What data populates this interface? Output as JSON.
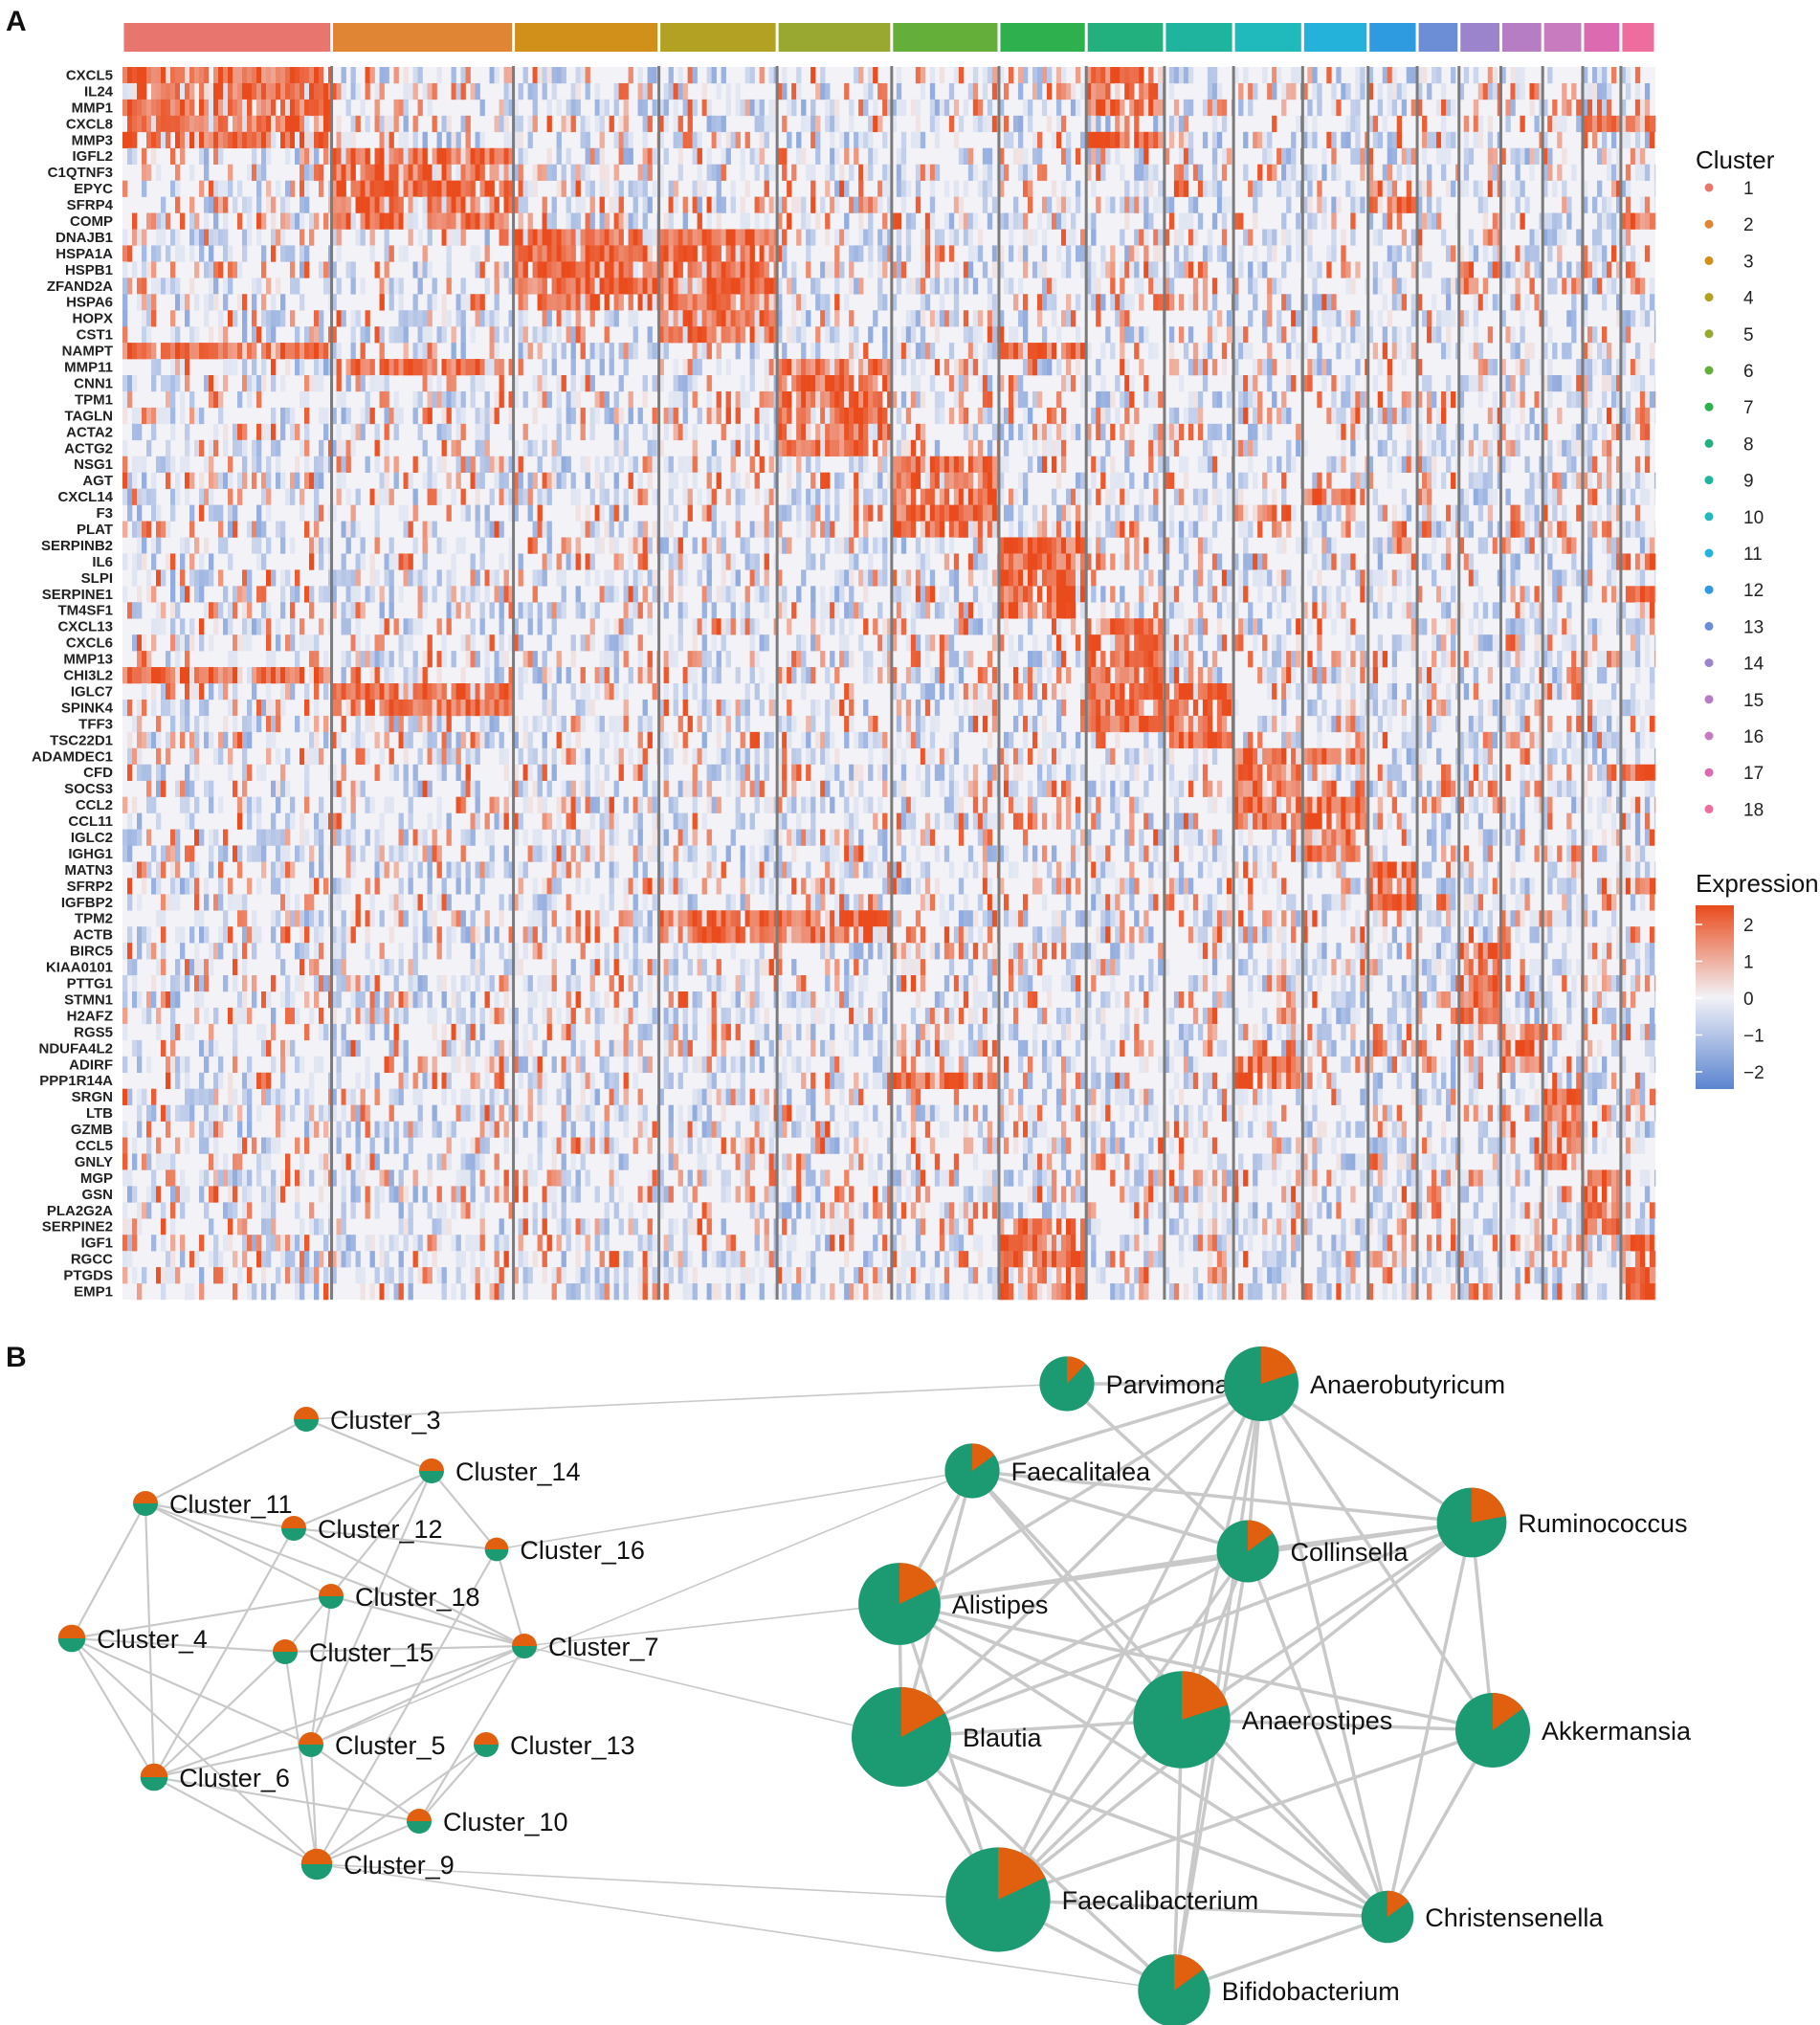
{
  "panel_a": {
    "letter": "A"
  },
  "panel_b": {
    "letter": "B"
  },
  "legend": {
    "cluster_title": "Cluster",
    "expression_title": "Expression",
    "expression_ticks": [
      "2",
      "1",
      "0",
      "−1",
      "−2"
    ],
    "low_color": "#5b84d0",
    "mid_color": "#f2f2f7",
    "high_color": "#ea4b1c"
  },
  "chart_data": [
    {
      "type": "heatmap",
      "title": "",
      "xlabel": "",
      "ylabel": "",
      "value_range": [
        -2,
        2
      ],
      "clusters": [
        {
          "id": "1",
          "color": "#E8766E",
          "weight": 11.5
        },
        {
          "id": "2",
          "color": "#E08533",
          "weight": 10.0
        },
        {
          "id": "3",
          "color": "#D0901A",
          "weight": 8.0
        },
        {
          "id": "4",
          "color": "#B3A124",
          "weight": 6.5
        },
        {
          "id": "5",
          "color": "#99A830",
          "weight": 6.3
        },
        {
          "id": "6",
          "color": "#63AF3A",
          "weight": 5.9
        },
        {
          "id": "7",
          "color": "#2FB04F",
          "weight": 4.8
        },
        {
          "id": "8",
          "color": "#22B07E",
          "weight": 4.3
        },
        {
          "id": "9",
          "color": "#1EB49E",
          "weight": 3.8
        },
        {
          "id": "10",
          "color": "#20BABD",
          "weight": 3.8
        },
        {
          "id": "11",
          "color": "#25B2DA",
          "weight": 3.6
        },
        {
          "id": "12",
          "color": "#2E9BE0",
          "weight": 2.7
        },
        {
          "id": "13",
          "color": "#6C8ED6",
          "weight": 2.3
        },
        {
          "id": "14",
          "color": "#9B84CC",
          "weight": 2.3
        },
        {
          "id": "15",
          "color": "#B77DC4",
          "weight": 2.3
        },
        {
          "id": "16",
          "color": "#C97BBF",
          "weight": 2.2
        },
        {
          "id": "17",
          "color": "#DB6AB0",
          "weight": 2.1
        },
        {
          "id": "18",
          "color": "#EE6C9E",
          "weight": 1.9
        }
      ],
      "genes": [
        {
          "name": "CXCL5",
          "hi": [
            1,
            8
          ]
        },
        {
          "name": "IL24",
          "hi": [
            1,
            8
          ]
        },
        {
          "name": "MMP1",
          "hi": [
            1,
            8
          ]
        },
        {
          "name": "CXCL8",
          "hi": [
            1,
            17,
            18
          ]
        },
        {
          "name": "MMP3",
          "hi": [
            1,
            8
          ]
        },
        {
          "name": "IGFL2",
          "hi": [
            2
          ]
        },
        {
          "name": "C1QTNF3",
          "hi": [
            2
          ]
        },
        {
          "name": "EPYC",
          "hi": [
            2
          ]
        },
        {
          "name": "SFRP4",
          "hi": [
            2,
            12
          ]
        },
        {
          "name": "COMP",
          "hi": [
            2,
            18
          ]
        },
        {
          "name": "DNAJB1",
          "hi": [
            3,
            4
          ]
        },
        {
          "name": "HSPA1A",
          "hi": [
            3,
            4
          ]
        },
        {
          "name": "HSPB1",
          "hi": [
            3,
            4
          ]
        },
        {
          "name": "ZFAND2A",
          "hi": [
            3,
            4
          ]
        },
        {
          "name": "HSPA6",
          "hi": [
            3,
            4
          ]
        },
        {
          "name": "HOPX",
          "hi": [
            4
          ]
        },
        {
          "name": "CST1",
          "hi": [
            4
          ]
        },
        {
          "name": "NAMPT",
          "hi": [
            1,
            7
          ]
        },
        {
          "name": "MMP11",
          "hi": [
            2,
            5
          ]
        },
        {
          "name": "CNN1",
          "hi": [
            5
          ]
        },
        {
          "name": "TPM1",
          "hi": [
            5
          ]
        },
        {
          "name": "TAGLN",
          "hi": [
            5
          ]
        },
        {
          "name": "ACTA2",
          "hi": [
            5
          ]
        },
        {
          "name": "ACTG2",
          "hi": [
            5
          ]
        },
        {
          "name": "NSG1",
          "hi": [
            6
          ]
        },
        {
          "name": "AGT",
          "hi": [
            6
          ]
        },
        {
          "name": "CXCL14",
          "hi": [
            6,
            11
          ]
        },
        {
          "name": "F3",
          "hi": [
            6,
            10
          ]
        },
        {
          "name": "PLAT",
          "hi": [
            6
          ]
        },
        {
          "name": "SERPINB2",
          "hi": [
            7
          ]
        },
        {
          "name": "IL6",
          "hi": [
            7,
            18
          ]
        },
        {
          "name": "SLPI",
          "hi": [
            7
          ]
        },
        {
          "name": "SERPINE1",
          "hi": [
            7,
            18
          ]
        },
        {
          "name": "TM4SF1",
          "hi": [
            7
          ]
        },
        {
          "name": "CXCL13",
          "hi": [
            8
          ]
        },
        {
          "name": "CXCL6",
          "hi": [
            8
          ]
        },
        {
          "name": "MMP13",
          "hi": [
            8
          ]
        },
        {
          "name": "CHI3L2",
          "hi": [
            1,
            8
          ]
        },
        {
          "name": "IGLC7",
          "hi": [
            2,
            8,
            9
          ]
        },
        {
          "name": "SPINK4",
          "hi": [
            2,
            8,
            9
          ]
        },
        {
          "name": "TFF3",
          "hi": [
            8,
            9
          ]
        },
        {
          "name": "TSC22D1",
          "hi": [
            9
          ]
        },
        {
          "name": "ADAMDEC1",
          "hi": [
            10,
            11
          ]
        },
        {
          "name": "CFD",
          "hi": [
            10,
            18
          ]
        },
        {
          "name": "SOCS3",
          "hi": [
            10
          ]
        },
        {
          "name": "CCL2",
          "hi": [
            10,
            11
          ]
        },
        {
          "name": "CCL11",
          "hi": [
            10,
            11
          ]
        },
        {
          "name": "IGLC2",
          "hi": [
            11
          ]
        },
        {
          "name": "IGHG1",
          "hi": [
            11
          ]
        },
        {
          "name": "MATN3",
          "hi": [
            12
          ]
        },
        {
          "name": "SFRP2",
          "hi": [
            12,
            18
          ]
        },
        {
          "name": "IGFBP2",
          "hi": [
            12
          ]
        },
        {
          "name": "TPM2",
          "hi": [
            4,
            5
          ]
        },
        {
          "name": "ACTB",
          "hi": [
            4,
            5
          ]
        },
        {
          "name": "BIRC5",
          "hi": [
            14
          ]
        },
        {
          "name": "KIAA0101",
          "hi": [
            14
          ]
        },
        {
          "name": "PTTG1",
          "hi": [
            14
          ]
        },
        {
          "name": "STMN1",
          "hi": [
            14
          ]
        },
        {
          "name": "H2AFZ",
          "hi": [
            14
          ]
        },
        {
          "name": "RGS5",
          "hi": [
            15
          ]
        },
        {
          "name": "NDUFA4L2",
          "hi": [
            15
          ]
        },
        {
          "name": "ADIRF",
          "hi": [
            10,
            15
          ]
        },
        {
          "name": "PPP1R14A",
          "hi": [
            6,
            10
          ]
        },
        {
          "name": "SRGN",
          "hi": [
            16
          ]
        },
        {
          "name": "LTB",
          "hi": [
            16
          ]
        },
        {
          "name": "GZMB",
          "hi": [
            16
          ]
        },
        {
          "name": "CCL5",
          "hi": [
            16
          ]
        },
        {
          "name": "GNLY",
          "hi": [
            16
          ]
        },
        {
          "name": "MGP",
          "hi": [
            17
          ]
        },
        {
          "name": "GSN",
          "hi": [
            17
          ]
        },
        {
          "name": "PLA2G2A",
          "hi": [
            17
          ]
        },
        {
          "name": "SERPINE2",
          "hi": [
            7,
            17
          ]
        },
        {
          "name": "IGF1",
          "hi": [
            7,
            18
          ]
        },
        {
          "name": "RGCC",
          "hi": [
            7,
            18
          ]
        },
        {
          "name": "PTGDS",
          "hi": [
            7,
            18
          ]
        },
        {
          "name": "EMP1",
          "hi": [
            7,
            18
          ]
        }
      ]
    },
    {
      "type": "network",
      "title": "",
      "pie_colors": {
        "share_a": "#E0600F",
        "share_b": "#1C9A72"
      },
      "nodes": [
        {
          "id": "Cluster_3",
          "size": 1,
          "share": 0.5
        },
        {
          "id": "Cluster_14",
          "size": 1,
          "share": 0.5
        },
        {
          "id": "Cluster_11",
          "size": 1,
          "share": 0.5
        },
        {
          "id": "Cluster_12",
          "size": 1,
          "share": 0.5
        },
        {
          "id": "Cluster_16",
          "size": 0.95,
          "share": 0.5
        },
        {
          "id": "Cluster_18",
          "size": 1,
          "share": 0.5
        },
        {
          "id": "Cluster_4",
          "size": 1.1,
          "share": 0.5
        },
        {
          "id": "Cluster_15",
          "size": 1,
          "share": 0.5
        },
        {
          "id": "Cluster_7",
          "size": 1,
          "share": 0.5
        },
        {
          "id": "Cluster_5",
          "size": 1,
          "share": 0.5
        },
        {
          "id": "Cluster_13",
          "size": 1,
          "share": 0.5
        },
        {
          "id": "Cluster_6",
          "size": 1.1,
          "share": 0.5
        },
        {
          "id": "Cluster_10",
          "size": 1,
          "share": 0.5
        },
        {
          "id": "Cluster_9",
          "size": 1.25,
          "share": 0.5
        },
        {
          "id": "Parvimonas",
          "size": 2.2,
          "share": 0.12
        },
        {
          "id": "Anaerobutyricum",
          "size": 3.0,
          "share": 0.2
        },
        {
          "id": "Faecalitalea",
          "size": 2.2,
          "share": 0.15
        },
        {
          "id": "Ruminococcus",
          "size": 2.8,
          "share": 0.22
        },
        {
          "id": "Collinsella",
          "size": 2.5,
          "share": 0.15
        },
        {
          "id": "Alistipes",
          "size": 3.3,
          "share": 0.18
        },
        {
          "id": "Blautia",
          "size": 4.0,
          "share": 0.17
        },
        {
          "id": "Anaerostipes",
          "size": 3.9,
          "share": 0.2
        },
        {
          "id": "Akkermansia",
          "size": 3.0,
          "share": 0.15
        },
        {
          "id": "Faecalibacterium",
          "size": 4.2,
          "share": 0.18
        },
        {
          "id": "Christensenella",
          "size": 2.1,
          "share": 0.15
        },
        {
          "id": "Bifidobacterium",
          "size": 2.9,
          "share": 0.15
        }
      ],
      "edges": [
        [
          "Cluster_3",
          "Cluster_11"
        ],
        [
          "Cluster_3",
          "Cluster_14"
        ],
        [
          "Cluster_14",
          "Cluster_16"
        ],
        [
          "Cluster_14",
          "Cluster_12"
        ],
        [
          "Cluster_14",
          "Cluster_15"
        ],
        [
          "Cluster_14",
          "Cluster_5"
        ],
        [
          "Cluster_11",
          "Cluster_12"
        ],
        [
          "Cluster_11",
          "Cluster_4"
        ],
        [
          "Cluster_11",
          "Cluster_18"
        ],
        [
          "Cluster_11",
          "Cluster_6"
        ],
        [
          "Cluster_11",
          "Cluster_7"
        ],
        [
          "Cluster_12",
          "Cluster_7"
        ],
        [
          "Cluster_12",
          "Cluster_6"
        ],
        [
          "Cluster_12",
          "Cluster_16"
        ],
        [
          "Cluster_16",
          "Cluster_7"
        ],
        [
          "Cluster_16",
          "Cluster_9"
        ],
        [
          "Cluster_18",
          "Cluster_4"
        ],
        [
          "Cluster_18",
          "Cluster_7"
        ],
        [
          "Cluster_18",
          "Cluster_5"
        ],
        [
          "Cluster_4",
          "Cluster_15"
        ],
        [
          "Cluster_4",
          "Cluster_6"
        ],
        [
          "Cluster_4",
          "Cluster_5"
        ],
        [
          "Cluster_4",
          "Cluster_9"
        ],
        [
          "Cluster_15",
          "Cluster_7"
        ],
        [
          "Cluster_15",
          "Cluster_6"
        ],
        [
          "Cluster_15",
          "Cluster_9"
        ],
        [
          "Cluster_5",
          "Cluster_7"
        ],
        [
          "Cluster_5",
          "Cluster_6"
        ],
        [
          "Cluster_5",
          "Cluster_9"
        ],
        [
          "Cluster_5",
          "Cluster_10"
        ],
        [
          "Cluster_6",
          "Cluster_9"
        ],
        [
          "Cluster_6",
          "Cluster_10"
        ],
        [
          "Cluster_6",
          "Cluster_7"
        ],
        [
          "Cluster_10",
          "Cluster_7"
        ],
        [
          "Cluster_9",
          "Cluster_10"
        ],
        [
          "Cluster_13",
          "Cluster_9"
        ],
        [
          "Cluster_13",
          "Cluster_10"
        ],
        [
          "Cluster_9",
          "Faecalibacterium"
        ],
        [
          "Cluster_9",
          "Bifidobacterium"
        ],
        [
          "Cluster_3",
          "Parvimonas"
        ],
        [
          "Cluster_16",
          "Faecalitalea"
        ],
        [
          "Cluster_7",
          "Alistipes"
        ],
        [
          "Cluster_7",
          "Blautia"
        ],
        [
          "Cluster_5",
          "Faecalitalea"
        ],
        [
          "Parvimonas",
          "Anaerobutyricum"
        ],
        [
          "Parvimonas",
          "Collinsella"
        ],
        [
          "Anaerobutyricum",
          "Faecalitalea"
        ],
        [
          "Anaerobutyricum",
          "Ruminococcus"
        ],
        [
          "Anaerobutyricum",
          "Alistipes"
        ],
        [
          "Anaerobutyricum",
          "Blautia"
        ],
        [
          "Anaerobutyricum",
          "Anaerostipes"
        ],
        [
          "Anaerobutyricum",
          "Collinsella"
        ],
        [
          "Anaerobutyricum",
          "Faecalibacterium"
        ],
        [
          "Anaerobutyricum",
          "Christensenella"
        ],
        [
          "Anaerobutyricum",
          "Bifidobacterium"
        ],
        [
          "Anaerobutyricum",
          "Akkermansia"
        ],
        [
          "Faecalitalea",
          "Collinsella"
        ],
        [
          "Faecalitalea",
          "Ruminococcus"
        ],
        [
          "Faecalitalea",
          "Anaerostipes"
        ],
        [
          "Faecalitalea",
          "Blautia"
        ],
        [
          "Faecalitalea",
          "Christensenella"
        ],
        [
          "Faecalitalea",
          "Alistipes"
        ],
        [
          "Ruminococcus",
          "Collinsella"
        ],
        [
          "Ruminococcus",
          "Alistipes"
        ],
        [
          "Ruminococcus",
          "Akkermansia"
        ],
        [
          "Ruminococcus",
          "Anaerostipes"
        ],
        [
          "Ruminococcus",
          "Blautia"
        ],
        [
          "Ruminococcus",
          "Christensenella"
        ],
        [
          "Ruminococcus",
          "Faecalibacterium"
        ],
        [
          "Collinsella",
          "Alistipes"
        ],
        [
          "Collinsella",
          "Blautia"
        ],
        [
          "Collinsella",
          "Anaerostipes"
        ],
        [
          "Collinsella",
          "Faecalibacterium"
        ],
        [
          "Collinsella",
          "Christensenella"
        ],
        [
          "Collinsella",
          "Bifidobacterium"
        ],
        [
          "Alistipes",
          "Blautia"
        ],
        [
          "Alistipes",
          "Anaerostipes"
        ],
        [
          "Alistipes",
          "Faecalibacterium"
        ],
        [
          "Alistipes",
          "Christensenella"
        ],
        [
          "Alistipes",
          "Akkermansia"
        ],
        [
          "Blautia",
          "Anaerostipes"
        ],
        [
          "Blautia",
          "Faecalibacterium"
        ],
        [
          "Blautia",
          "Bifidobacterium"
        ],
        [
          "Blautia",
          "Christensenella"
        ],
        [
          "Anaerostipes",
          "Akkermansia"
        ],
        [
          "Anaerostipes",
          "Faecalibacterium"
        ],
        [
          "Anaerostipes",
          "Christensenella"
        ],
        [
          "Anaerostipes",
          "Bifidobacterium"
        ],
        [
          "Akkermansia",
          "Christensenella"
        ],
        [
          "Akkermansia",
          "Faecalibacterium"
        ],
        [
          "Faecalibacterium",
          "Christensenella"
        ],
        [
          "Faecalibacterium",
          "Bifidobacterium"
        ],
        [
          "Christensenella",
          "Bifidobacterium"
        ]
      ]
    }
  ]
}
